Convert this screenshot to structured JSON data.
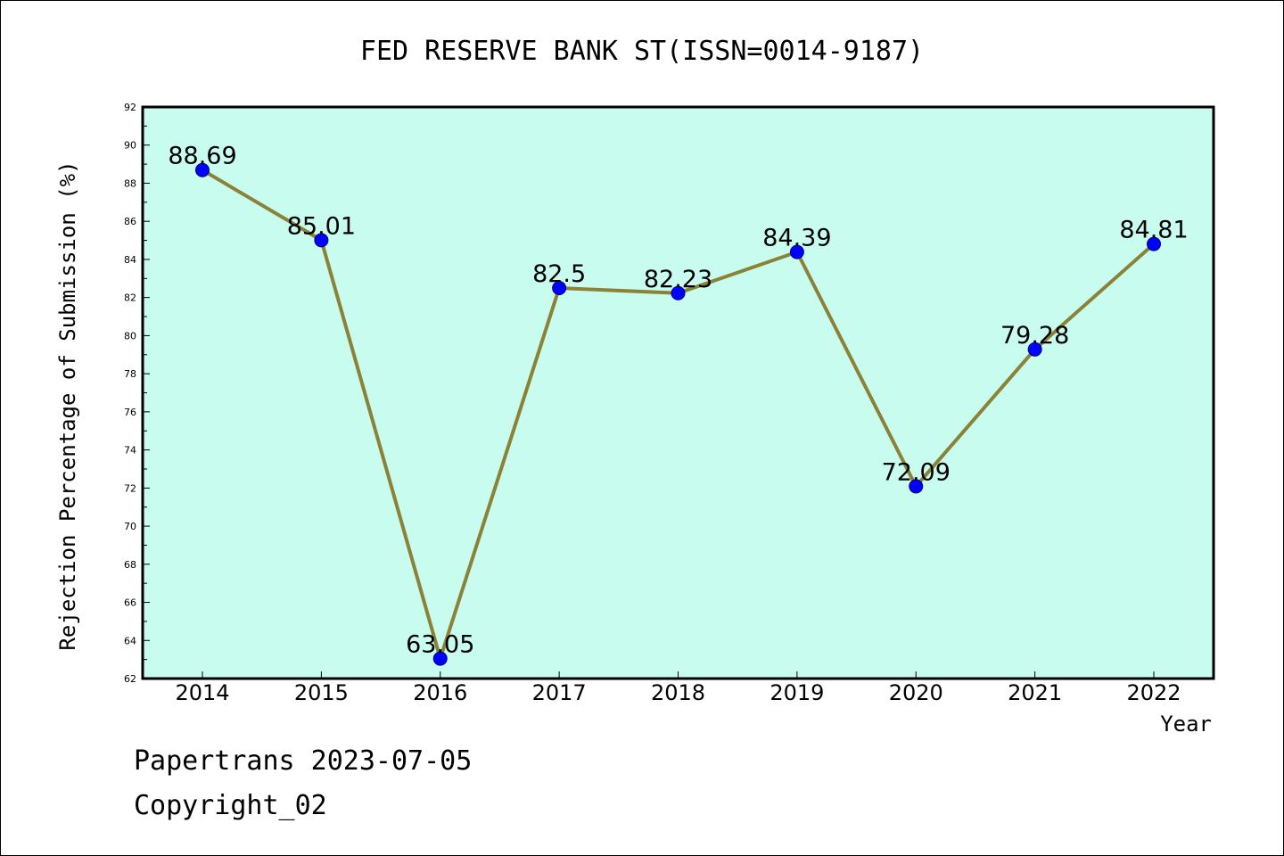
{
  "chart_data": {
    "type": "line",
    "title": "FED RESERVE BANK ST(ISSN=0014-9187)",
    "xlabel": "Year",
    "ylabel": "Rejection Percentage of Submission (%)",
    "categories": [
      "2014",
      "2015",
      "2016",
      "2017",
      "2018",
      "2019",
      "2020",
      "2021",
      "2022"
    ],
    "values": [
      88.69,
      85.01,
      63.05,
      82.5,
      82.23,
      84.39,
      72.09,
      79.28,
      84.81
    ],
    "data_labels": [
      "88.69",
      "85.01",
      "63.05",
      "82.5",
      "82.23",
      "84.39",
      "72.09",
      "79.28",
      "84.81"
    ],
    "ylim": [
      62,
      92
    ],
    "yticks": [
      "62",
      "64",
      "66",
      "68",
      "70",
      "72",
      "74",
      "76",
      "78",
      "80",
      "82",
      "84",
      "86",
      "88",
      "90",
      "92"
    ],
    "grid": false,
    "legend": "none",
    "colors": {
      "plot_background": "#c8fcee",
      "line": "#8b8237",
      "marker": "#0000ff"
    }
  },
  "footer": {
    "line1": "Papertrans 2023-07-05",
    "line2": "Copyright_02"
  }
}
